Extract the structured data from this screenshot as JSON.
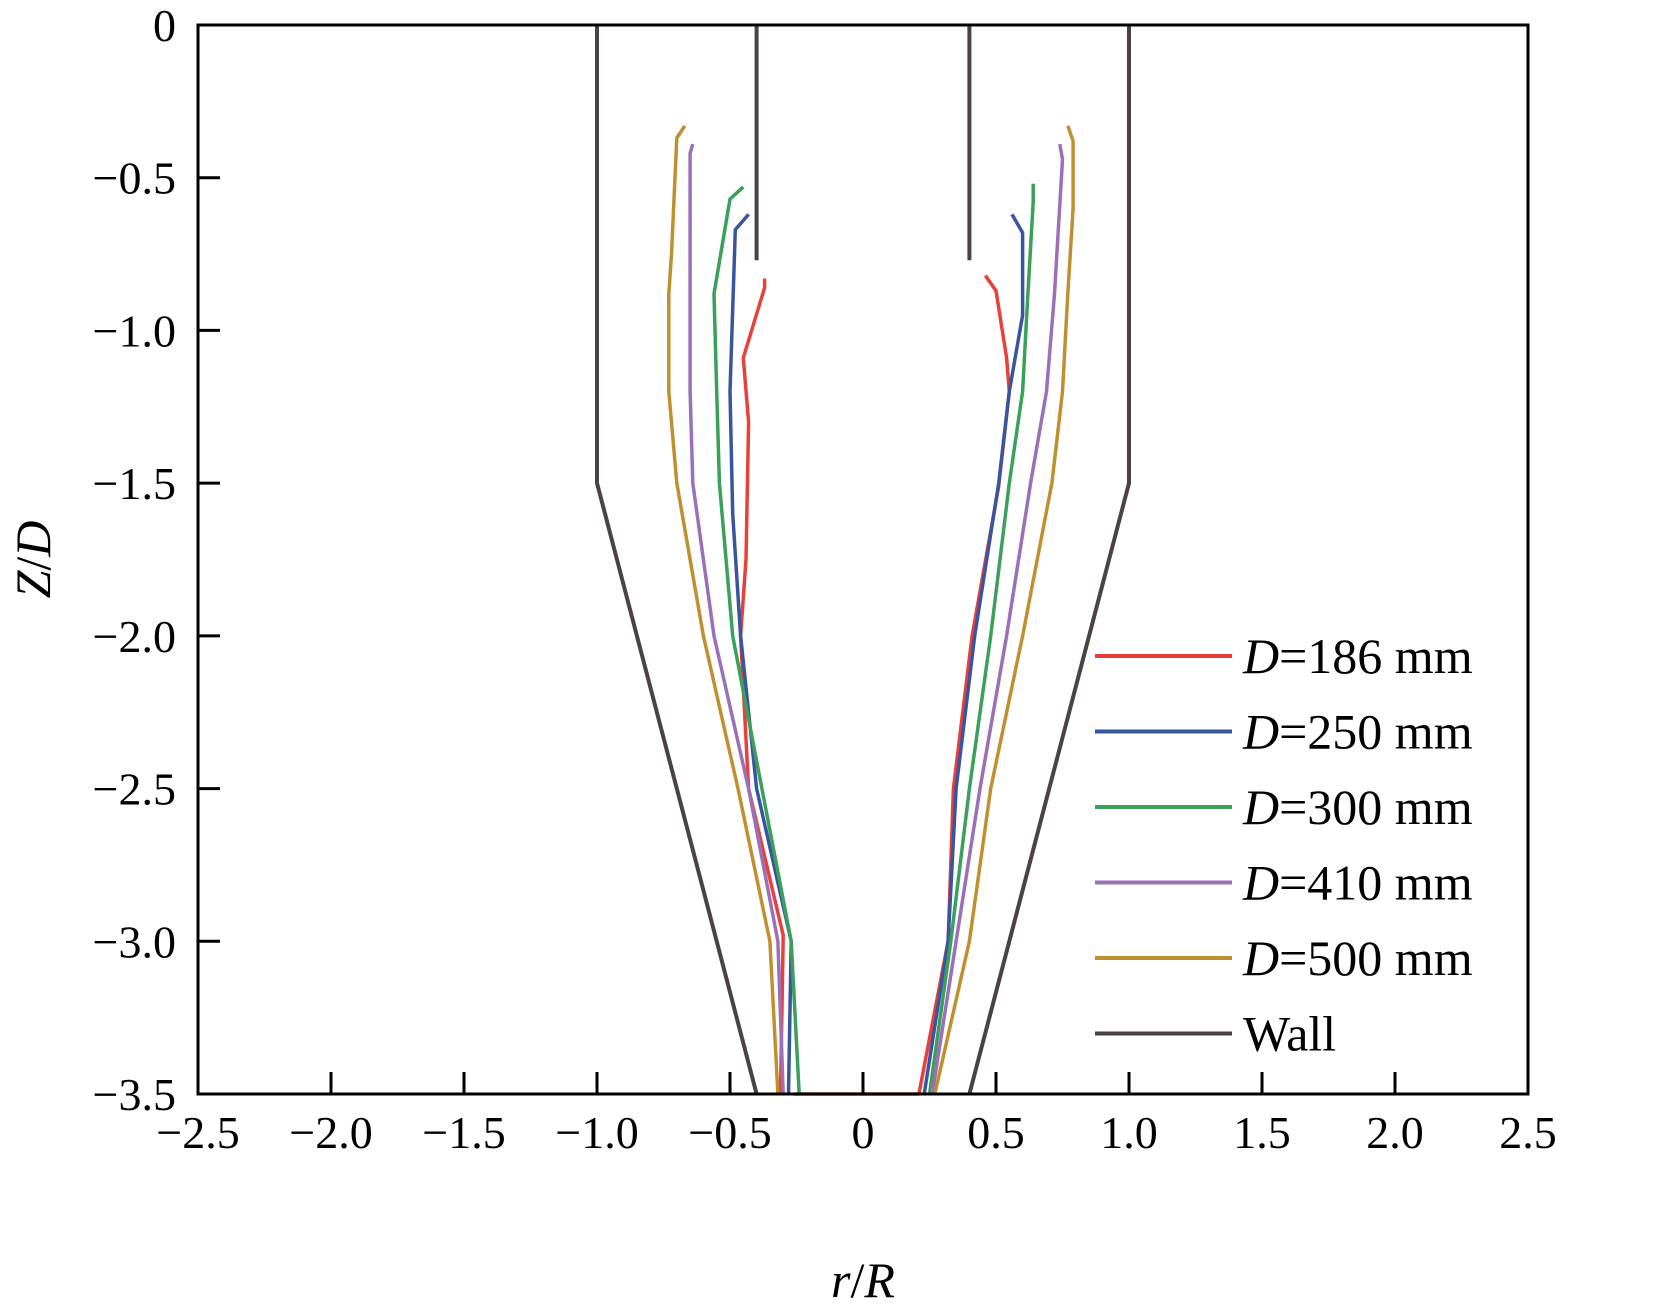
{
  "chart_data": {
    "type": "line",
    "title": "",
    "xlabel": {
      "italic1": "r",
      "sep": "/",
      "italic2": "R"
    },
    "ylabel": {
      "italic1": "Z",
      "sep": "/",
      "italic2": "D"
    },
    "xlim": [
      -2.5,
      2.5
    ],
    "ylim": [
      -3.5,
      0
    ],
    "xticks": [
      -2.5,
      -2.0,
      -1.5,
      -1.0,
      -0.5,
      0,
      0.5,
      1.0,
      1.5,
      2.0,
      2.5
    ],
    "xtick_labels": [
      "−2.5",
      "−2.0",
      "−1.5",
      "−1.0",
      "−0.5",
      "0",
      "0.5",
      "1.0",
      "1.5",
      "2.0",
      "2.5"
    ],
    "yticks": [
      0,
      -0.5,
      -1.0,
      -1.5,
      -2.0,
      -2.5,
      -3.0,
      -3.5
    ],
    "ytick_labels": [
      "0",
      "−0.5",
      "−1.0",
      "−1.5",
      "−2.0",
      "−2.5",
      "−3.0",
      "−3.5"
    ],
    "grid": false,
    "legend_position": "bottom-right",
    "series": [
      {
        "name_italic": "D",
        "name_rest": "=186 mm",
        "color": "#e8403a",
        "segments": [
          [
            [
              -0.37,
              -0.83
            ],
            [
              -0.37,
              -0.86
            ],
            [
              -0.45,
              -1.09
            ],
            [
              -0.43,
              -1.3
            ],
            [
              -0.44,
              -1.75
            ],
            [
              -0.46,
              -2.0
            ],
            [
              -0.43,
              -2.5
            ],
            [
              -0.3,
              -2.98
            ],
            [
              -0.31,
              -3.5
            ]
          ],
          [
            [
              0.46,
              -0.82
            ],
            [
              0.5,
              -0.87
            ],
            [
              0.54,
              -1.09
            ],
            [
              0.55,
              -1.2
            ],
            [
              0.51,
              -1.51
            ],
            [
              0.41,
              -2.0
            ],
            [
              0.34,
              -2.5
            ],
            [
              0.32,
              -3.0
            ],
            [
              0.21,
              -3.5
            ]
          ],
          [
            [
              -0.26,
              -3.5
            ],
            [
              0.21,
              -3.5
            ]
          ]
        ]
      },
      {
        "name_italic": "D",
        "name_rest": "=250 mm",
        "color": "#3a55a0",
        "segments": [
          [
            [
              -0.43,
              -0.62
            ],
            [
              -0.48,
              -0.67
            ],
            [
              -0.5,
              -1.2
            ],
            [
              -0.49,
              -1.6
            ],
            [
              -0.46,
              -2.0
            ],
            [
              -0.4,
              -2.5
            ],
            [
              -0.27,
              -3.0
            ],
            [
              -0.28,
              -3.5
            ]
          ],
          [
            [
              0.56,
              -0.62
            ],
            [
              0.6,
              -0.68
            ],
            [
              0.6,
              -0.95
            ],
            [
              0.55,
              -1.2
            ],
            [
              0.51,
              -1.5
            ],
            [
              0.42,
              -2.0
            ],
            [
              0.35,
              -2.5
            ],
            [
              0.32,
              -3.0
            ],
            [
              0.23,
              -3.5
            ]
          ]
        ]
      },
      {
        "name_italic": "D",
        "name_rest": "=300 mm",
        "color": "#3aa05a",
        "segments": [
          [
            [
              -0.45,
              -0.53
            ],
            [
              -0.5,
              -0.57
            ],
            [
              -0.56,
              -0.88
            ],
            [
              -0.55,
              -1.2
            ],
            [
              -0.54,
              -1.5
            ],
            [
              -0.49,
              -2.0
            ],
            [
              -0.38,
              -2.5
            ],
            [
              -0.27,
              -3.0
            ],
            [
              -0.24,
              -3.5
            ]
          ],
          [
            [
              0.64,
              -0.52
            ],
            [
              0.64,
              -0.58
            ],
            [
              0.62,
              -0.88
            ],
            [
              0.6,
              -1.2
            ],
            [
              0.55,
              -1.5
            ],
            [
              0.48,
              -2.0
            ],
            [
              0.4,
              -2.5
            ],
            [
              0.33,
              -3.0
            ],
            [
              0.25,
              -3.5
            ]
          ]
        ]
      },
      {
        "name_italic": "D",
        "name_rest": "=410 mm",
        "color": "#9a70b8",
        "segments": [
          [
            [
              -0.64,
              -0.39
            ],
            [
              -0.65,
              -0.42
            ],
            [
              -0.65,
              -0.88
            ],
            [
              -0.65,
              -1.2
            ],
            [
              -0.64,
              -1.5
            ],
            [
              -0.56,
              -2.0
            ],
            [
              -0.43,
              -2.5
            ],
            [
              -0.32,
              -3.0
            ],
            [
              -0.3,
              -3.5
            ]
          ],
          [
            [
              0.74,
              -0.39
            ],
            [
              0.75,
              -0.44
            ],
            [
              0.72,
              -0.88
            ],
            [
              0.69,
              -1.2
            ],
            [
              0.63,
              -1.5
            ],
            [
              0.54,
              -2.0
            ],
            [
              0.44,
              -2.5
            ],
            [
              0.35,
              -3.0
            ],
            [
              0.26,
              -3.5
            ]
          ]
        ]
      },
      {
        "name_italic": "D",
        "name_rest": "=500 mm",
        "color": "#c09030",
        "segments": [
          [
            [
              -0.67,
              -0.33
            ],
            [
              -0.7,
              -0.37
            ],
            [
              -0.72,
              -0.75
            ],
            [
              -0.73,
              -0.88
            ],
            [
              -0.73,
              -1.2
            ],
            [
              -0.7,
              -1.5
            ],
            [
              -0.6,
              -2.0
            ],
            [
              -0.47,
              -2.5
            ],
            [
              -0.35,
              -3.0
            ],
            [
              -0.32,
              -3.5
            ]
          ],
          [
            [
              0.77,
              -0.33
            ],
            [
              0.79,
              -0.38
            ],
            [
              0.79,
              -0.6
            ],
            [
              0.77,
              -0.88
            ],
            [
              0.75,
              -1.2
            ],
            [
              0.71,
              -1.5
            ],
            [
              0.6,
              -2.0
            ],
            [
              0.48,
              -2.5
            ],
            [
              0.4,
              -3.0
            ],
            [
              0.27,
              -3.5
            ]
          ]
        ]
      },
      {
        "name_italic": "",
        "name_rest": "Wall",
        "color": "#4a4244",
        "segments": [
          [
            [
              -1.0,
              0
            ],
            [
              -1.0,
              -1.5
            ],
            [
              -0.4,
              -3.5
            ]
          ],
          [
            [
              1.0,
              0
            ],
            [
              1.0,
              -1.5
            ],
            [
              0.4,
              -3.5
            ]
          ],
          [
            [
              -0.4,
              0
            ],
            [
              -0.4,
              -0.77
            ]
          ],
          [
            [
              0.4,
              0
            ],
            [
              0.4,
              -0.77
            ]
          ]
        ]
      }
    ]
  }
}
